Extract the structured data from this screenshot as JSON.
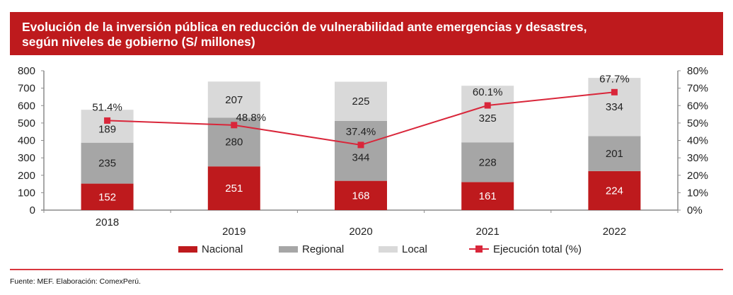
{
  "header": {
    "title_line1": "Evolución de la inversión pública en reducción de vulnerabilidad ante emergencias y desastres,",
    "title_line2": "según niveles de gobierno (S/ millones)"
  },
  "colors": {
    "title_bg": "#be1a1d",
    "nacional": "#be1a1d",
    "regional": "#a6a6a6",
    "local": "#d9d9d9",
    "ejecucion": "#d9263a",
    "axis": "#8c8c8c"
  },
  "chart_data": {
    "type": "bar",
    "stacked": true,
    "title": "Evolución de la inversión pública en reducción de vulnerabilidad ante emergencias y desastres, según niveles de gobierno (S/ millones)",
    "categories": [
      "2018",
      "2019",
      "2020",
      "2021",
      "2022"
    ],
    "series": [
      {
        "name": "Nacional",
        "type": "bar",
        "axis": "left",
        "values": [
          152,
          251,
          168,
          161,
          224
        ]
      },
      {
        "name": "Regional",
        "type": "bar",
        "axis": "left",
        "values": [
          235,
          280,
          344,
          228,
          201
        ]
      },
      {
        "name": "Local",
        "type": "bar",
        "axis": "left",
        "values": [
          189,
          207,
          225,
          325,
          334
        ]
      },
      {
        "name": "Ejecución total (%)",
        "type": "line",
        "axis": "right",
        "values": [
          51.4,
          48.8,
          37.4,
          60.1,
          67.7
        ],
        "labels": [
          "51.4%",
          "48.8%",
          "37.4%",
          "60.1%",
          "67.7%"
        ]
      }
    ],
    "y_left": {
      "ylim": [
        0,
        800
      ],
      "ticks": [
        "0",
        "100",
        "200",
        "300",
        "400",
        "500",
        "600",
        "700",
        "800"
      ]
    },
    "y_right": {
      "ylim": [
        0,
        80
      ],
      "ticks": [
        "0%",
        "10%",
        "20%",
        "30%",
        "40%",
        "50%",
        "60%",
        "70%",
        "80%"
      ]
    },
    "xlabel": "",
    "ylabel": "",
    "grid": false,
    "legend": {
      "placement": "bottom",
      "entries": [
        "Nacional",
        "Regional",
        "Local",
        "Ejecución total (%)"
      ]
    }
  },
  "footer": {
    "source": "Fuente: MEF. Elaboración: ComexPerú."
  }
}
